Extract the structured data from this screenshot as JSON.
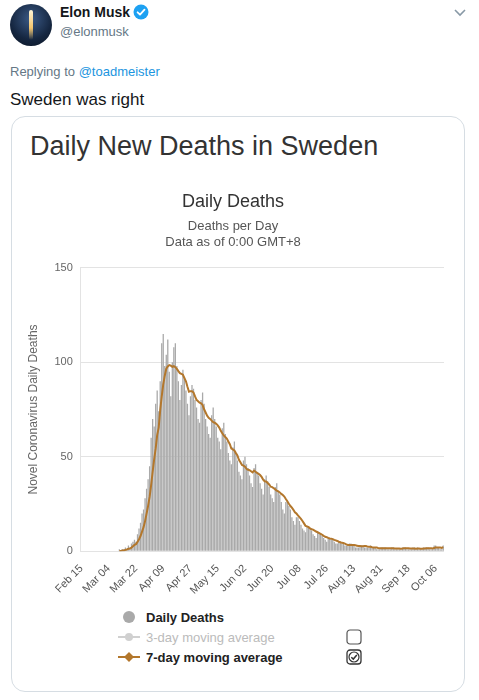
{
  "tweet": {
    "author": "Elon Musk",
    "handle": "@elonmusk",
    "reply_prefix": "Replying to",
    "reply_to": "@toadmeister",
    "text": "Sweden was right",
    "card_title": "Daily New Deaths in Sweden"
  },
  "chart_legend": [
    {
      "name": "Daily Deaths"
    },
    {
      "name": "3-day moving average",
      "checked": false
    },
    {
      "name": "7-day moving average",
      "checked": true
    }
  ],
  "chart_data": {
    "type": "bar",
    "title": "Daily Deaths",
    "subtitle": [
      "Deaths per Day",
      "Data as of 0:00 GMT+8"
    ],
    "y_label": "Novel Coronavirus Daily Deaths",
    "categories": [
      "Feb 15",
      null,
      null,
      null,
      null,
      null,
      null,
      null,
      null,
      null,
      null,
      null,
      null,
      null,
      null,
      null,
      null,
      null,
      "Mar 04",
      null,
      null,
      null,
      null,
      null,
      null,
      null,
      null,
      null,
      null,
      null,
      null,
      null,
      null,
      null,
      null,
      null,
      "Mar 22",
      null,
      null,
      null,
      null,
      null,
      null,
      null,
      null,
      null,
      null,
      null,
      null,
      null,
      null,
      null,
      null,
      null,
      "Apr 09",
      null,
      null,
      null,
      null,
      null,
      null,
      null,
      null,
      null,
      null,
      null,
      null,
      null,
      null,
      null,
      null,
      null,
      "Apr 27",
      null,
      null,
      null,
      null,
      null,
      null,
      null,
      null,
      null,
      null,
      null,
      null,
      null,
      null,
      null,
      null,
      null,
      "May 15",
      null,
      null,
      null,
      null,
      null,
      null,
      null,
      null,
      null,
      null,
      null,
      null,
      null,
      null,
      null,
      null,
      null,
      "Jun 02",
      null,
      null,
      null,
      null,
      null,
      null,
      null,
      null,
      null,
      null,
      null,
      null,
      null,
      null,
      null,
      null,
      null,
      "Jun 20",
      null,
      null,
      null,
      null,
      null,
      null,
      null,
      null,
      null,
      null,
      null,
      null,
      null,
      null,
      null,
      null,
      null,
      "Jul 08",
      null,
      null,
      null,
      null,
      null,
      null,
      null,
      null,
      null,
      null,
      null,
      null,
      null,
      null,
      null,
      null,
      null,
      "Jul 26",
      null,
      null,
      null,
      null,
      null,
      null,
      null,
      null,
      null,
      null,
      null,
      null,
      null,
      null,
      null,
      null,
      null,
      "Aug 13",
      null,
      null,
      null,
      null,
      null,
      null,
      null,
      null,
      null,
      null,
      null,
      null,
      null,
      null,
      null,
      null,
      null,
      "Aug 31",
      null,
      null,
      null,
      null,
      null,
      null,
      null,
      null,
      null,
      null,
      null,
      null,
      null,
      null,
      null,
      null,
      null,
      "Sep 18",
      null,
      null,
      null,
      null,
      null,
      null,
      null,
      null,
      null,
      null,
      null,
      null,
      null,
      null,
      null,
      null,
      null,
      "Oct 06",
      null,
      null,
      null,
      null,
      null
    ],
    "series": [
      {
        "name": "Daily Deaths",
        "type": "bar",
        "color": "#a9a9a9",
        "values": [
          0,
          0,
          0,
          0,
          0,
          0,
          0,
          0,
          0,
          0,
          0,
          0,
          0,
          0,
          0,
          0,
          0,
          0,
          0,
          0,
          0,
          0,
          0,
          0,
          0,
          1,
          0,
          1,
          1,
          2,
          1,
          3,
          2,
          4,
          5,
          6,
          5,
          9,
          12,
          15,
          20,
          22,
          28,
          33,
          38,
          45,
          60,
          70,
          66,
          78,
          85,
          74,
          90,
          110,
          115,
          98,
          104,
          112,
          95,
          82,
          100,
          108,
          110,
          98,
          90,
          80,
          88,
          96,
          92,
          85,
          78,
          72,
          82,
          88,
          86,
          80,
          76,
          70,
          68,
          80,
          84,
          78,
          70,
          66,
          62,
          60,
          72,
          76,
          70,
          66,
          60,
          58,
          54,
          65,
          68,
          62,
          58,
          52,
          48,
          46,
          55,
          58,
          52,
          48,
          42,
          40,
          38,
          48,
          50,
          46,
          44,
          40,
          36,
          34,
          44,
          46,
          42,
          40,
          36,
          33,
          30,
          38,
          40,
          37,
          34,
          30,
          28,
          26,
          34,
          36,
          32,
          30,
          26,
          22,
          20,
          26,
          27,
          24,
          22,
          18,
          16,
          14,
          18,
          18,
          16,
          14,
          12,
          11,
          10,
          13,
          13,
          12,
          11,
          9,
          8,
          7,
          10,
          10,
          9,
          8,
          7,
          6,
          5,
          7,
          7,
          6,
          6,
          5,
          4,
          4,
          5,
          5,
          4,
          4,
          3,
          3,
          3,
          4,
          4,
          3,
          3,
          2,
          2,
          2,
          3,
          3,
          3,
          2,
          2,
          2,
          2,
          3,
          2,
          2,
          2,
          1,
          1,
          1,
          2,
          2,
          2,
          2,
          1,
          1,
          1,
          2,
          2,
          1,
          1,
          1,
          1,
          1,
          2,
          2,
          2,
          1,
          1,
          1,
          1,
          2,
          2,
          1,
          2,
          1,
          1,
          1,
          2,
          2,
          2,
          2,
          1,
          1,
          1,
          3,
          3,
          2,
          2,
          1,
          1,
          3
        ]
      },
      {
        "name": "7-day moving average",
        "type": "line",
        "color": "#b3772c",
        "values": [
          null,
          null,
          null,
          null,
          null,
          null,
          null,
          null,
          null,
          null,
          null,
          null,
          null,
          null,
          null,
          null,
          null,
          null,
          null,
          null,
          null,
          null,
          null,
          null,
          null,
          0.1,
          0.1,
          0.3,
          0.4,
          0.7,
          0.9,
          1.3,
          1.4,
          1.9,
          2.6,
          3.3,
          3.7,
          4.9,
          6.3,
          8.0,
          10.3,
          12.7,
          15.9,
          19.9,
          24,
          28.7,
          35,
          42,
          48.6,
          54.4,
          61.4,
          65.4,
          74.7,
          81.9,
          88.3,
          92.9,
          96.6,
          97.8,
          98.5,
          98.2,
          97.6,
          97.9,
          97.4,
          96.5,
          95.3,
          94.2,
          93.8,
          93.4,
          91.6,
          89.9,
          87.0,
          84.4,
          84.7,
          84.7,
          84.0,
          81.9,
          80.1,
          79.4,
          78.6,
          78.3,
          77.4,
          75.1,
          73.4,
          71.7,
          70.6,
          70.0,
          69.1,
          68.3,
          68.0,
          67.4,
          66.6,
          65.4,
          63.7,
          62.4,
          61.3,
          60.4,
          59.6,
          58.1,
          56.6,
          54.3,
          53.9,
          53.3,
          51.9,
          50.7,
          48.4,
          47.1,
          45.6,
          45.3,
          44.7,
          43.6,
          43.1,
          42.9,
          42.3,
          41.7,
          42.6,
          42.0,
          41.4,
          40.9,
          40.3,
          39.3,
          37.9,
          37.0,
          36.9,
          36.1,
          35.3,
          34.1,
          33.9,
          33.3,
          32.7,
          32.0,
          31.7,
          31.1,
          30.3,
          29.7,
          28.9,
          27.6,
          26.4,
          25.1,
          23.9,
          23.0,
          21.9,
          20.6,
          19.9,
          18.9,
          18.0,
          17.1,
          16.0,
          14.7,
          13.4,
          13.1,
          12.7,
          12.1,
          11.6,
          11.4,
          10.9,
          10.4,
          10.0,
          9.6,
          9.2,
          8.7,
          8.1,
          7.6,
          7.4,
          7.0,
          6.7,
          6.6,
          6.4,
          6.0,
          5.7,
          5.4,
          5.0,
          4.7,
          4.4,
          4.3,
          4.0,
          3.6,
          3.3,
          3.3,
          3.3,
          3.3,
          3.3,
          3.1,
          2.9,
          2.7,
          2.7,
          2.6,
          2.6,
          2.7,
          2.7,
          2.4,
          2.3,
          2.3,
          2.1,
          2.0,
          2.0,
          1.9,
          1.7,
          1.6,
          1.6,
          1.6,
          1.6,
          1.6,
          1.6,
          1.6,
          1.6,
          1.6,
          1.6,
          1.4,
          1.4,
          1.4,
          1.4,
          1.3,
          1.4,
          1.6,
          1.6,
          1.6,
          1.6,
          1.4,
          1.4,
          1.4,
          1.4,
          1.3,
          1.4,
          1.4,
          1.3,
          1.3,
          1.4,
          1.4,
          1.6,
          1.6,
          1.6,
          1.6,
          1.4,
          1.7,
          2.0,
          2.0,
          2.0,
          1.9,
          1.7,
          2.1
        ]
      }
    ],
    "ylim": [
      0,
      150
    ],
    "yticks": [
      0,
      50,
      100,
      150
    ],
    "grid": true,
    "legend": "bottom"
  }
}
